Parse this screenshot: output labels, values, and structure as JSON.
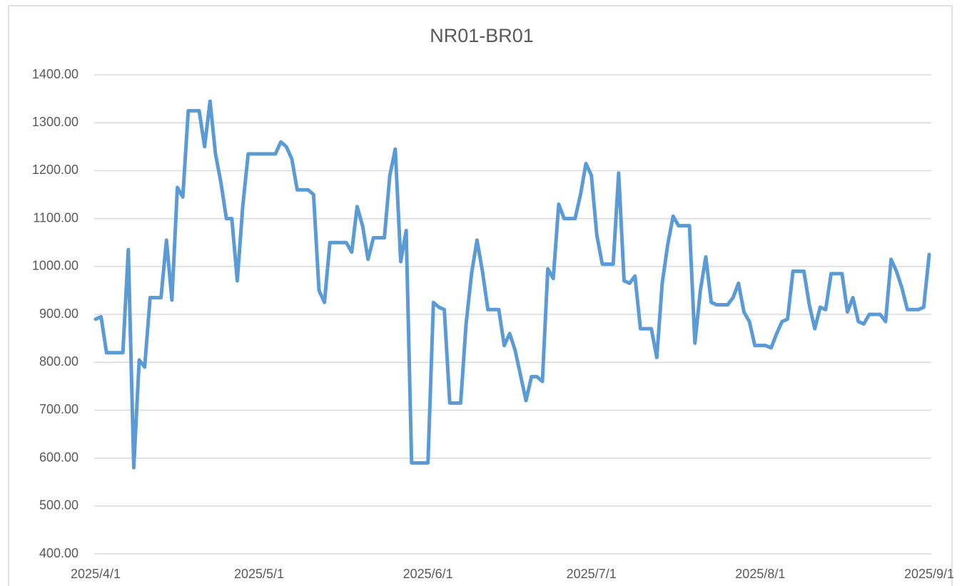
{
  "chart_data": {
    "type": "line",
    "title": "NR01-BR01",
    "x": [
      "2025/4/1",
      "2025/4/2",
      "2025/4/3",
      "2025/4/6",
      "2025/4/7",
      "2025/4/8",
      "2025/4/9",
      "2025/4/10",
      "2025/4/11",
      "2025/4/13",
      "2025/4/14",
      "2025/4/15",
      "2025/4/16",
      "2025/4/17",
      "2025/4/18",
      "2025/4/20",
      "2025/4/21",
      "2025/4/22",
      "2025/4/23",
      "2025/4/24",
      "2025/4/25",
      "2025/4/26",
      "2025/4/27",
      "2025/4/28",
      "2025/4/29",
      "2025/5/4",
      "2025/5/5",
      "2025/5/6",
      "2025/5/7",
      "2025/5/8",
      "2025/5/10",
      "2025/5/11",
      "2025/5/12",
      "2025/5/13",
      "2025/5/14",
      "2025/5/17",
      "2025/5/18",
      "2025/5/19",
      "2025/5/20",
      "2025/5/21",
      "2025/5/22",
      "2025/5/24",
      "2025/5/25",
      "2025/5/26",
      "2025/5/27",
      "2025/5/28",
      "2025/5/29",
      "2025/6/1",
      "2025/6/2",
      "2025/6/3",
      "2025/6/4",
      "2025/6/5",
      "2025/6/7",
      "2025/6/8",
      "2025/6/9",
      "2025/6/10",
      "2025/6/11",
      "2025/6/12",
      "2025/6/14",
      "2025/6/15",
      "2025/6/16",
      "2025/6/17",
      "2025/6/19",
      "2025/6/20",
      "2025/6/21",
      "2025/6/22",
      "2025/6/23",
      "2025/6/24",
      "2025/6/25",
      "2025/6/26",
      "2025/6/28",
      "2025/6/29",
      "2025/6/30",
      "2025/7/1",
      "2025/7/2",
      "2025/7/3",
      "2025/7/5",
      "2025/7/6",
      "2025/7/7",
      "2025/7/8",
      "2025/7/9",
      "2025/7/10",
      "2025/7/12",
      "2025/7/13",
      "2025/7/14",
      "2025/7/15",
      "2025/7/16",
      "2025/7/17",
      "2025/7/19",
      "2025/7/20",
      "2025/7/21",
      "2025/7/22",
      "2025/7/23",
      "2025/7/24",
      "2025/7/26",
      "2025/7/27",
      "2025/7/28",
      "2025/7/29",
      "2025/7/30",
      "2025/7/31",
      "2025/8/2",
      "2025/8/3",
      "2025/8/4",
      "2025/8/5",
      "2025/8/6",
      "2025/8/7",
      "2025/8/9",
      "2025/8/10",
      "2025/8/11",
      "2025/8/12",
      "2025/8/13",
      "2025/8/14",
      "2025/8/16",
      "2025/8/17",
      "2025/8/18",
      "2025/8/19",
      "2025/8/20",
      "2025/8/21",
      "2025/8/23",
      "2025/8/24",
      "2025/8/25",
      "2025/8/26",
      "2025/8/27",
      "2025/8/28",
      "2025/8/30",
      "2025/8/31",
      "2025/9/1"
    ],
    "values": [
      890,
      895,
      820,
      820,
      1035,
      580,
      805,
      790,
      935,
      935,
      1055,
      930,
      1165,
      1145,
      1325,
      1325,
      1250,
      1345,
      1235,
      1175,
      1100,
      1100,
      970,
      1125,
      1235,
      1235,
      1260,
      1250,
      1225,
      1160,
      1160,
      1150,
      950,
      925,
      1050,
      1050,
      1030,
      1125,
      1085,
      1015,
      1060,
      1060,
      1190,
      1245,
      1010,
      1075,
      590,
      590,
      925,
      915,
      910,
      715,
      715,
      880,
      985,
      1055,
      990,
      910,
      910,
      835,
      860,
      825,
      720,
      770,
      770,
      760,
      995,
      975,
      1130,
      1100,
      1100,
      1150,
      1215,
      1190,
      1065,
      1005,
      1005,
      1195,
      970,
      965,
      980,
      870,
      870,
      810,
      965,
      1045,
      1105,
      1085,
      1085,
      840,
      950,
      1020,
      925,
      920,
      920,
      935,
      965,
      905,
      885,
      835,
      835,
      830,
      860,
      885,
      890,
      990,
      990,
      920,
      870,
      915,
      910,
      985,
      985,
      905,
      935,
      885,
      880,
      900,
      900,
      885,
      1015,
      990,
      955,
      910,
      910,
      915,
      1025
    ],
    "color": "#5b9bd5",
    "xlim": [
      "2025/4/1",
      "2025/9/1"
    ],
    "xticks": [
      "2025/4/1",
      "2025/5/1",
      "2025/6/1",
      "2025/7/1",
      "2025/8/1",
      "2025/9/1"
    ],
    "ylim": [
      400,
      1400
    ],
    "yticks": [
      {
        "value": 400,
        "label": "400.00"
      },
      {
        "value": 500,
        "label": "500.00"
      },
      {
        "value": 600,
        "label": "600.00"
      },
      {
        "value": 700,
        "label": "700.00"
      },
      {
        "value": 800,
        "label": "800.00"
      },
      {
        "value": 900,
        "label": "900.00"
      },
      {
        "value": 1000,
        "label": "1000.00"
      },
      {
        "value": 1100,
        "label": "1100.00"
      },
      {
        "value": 1200,
        "label": "1200.00"
      },
      {
        "value": 1300,
        "label": "1300.00"
      },
      {
        "value": 1400,
        "label": "1400.00"
      }
    ],
    "grid": true
  }
}
